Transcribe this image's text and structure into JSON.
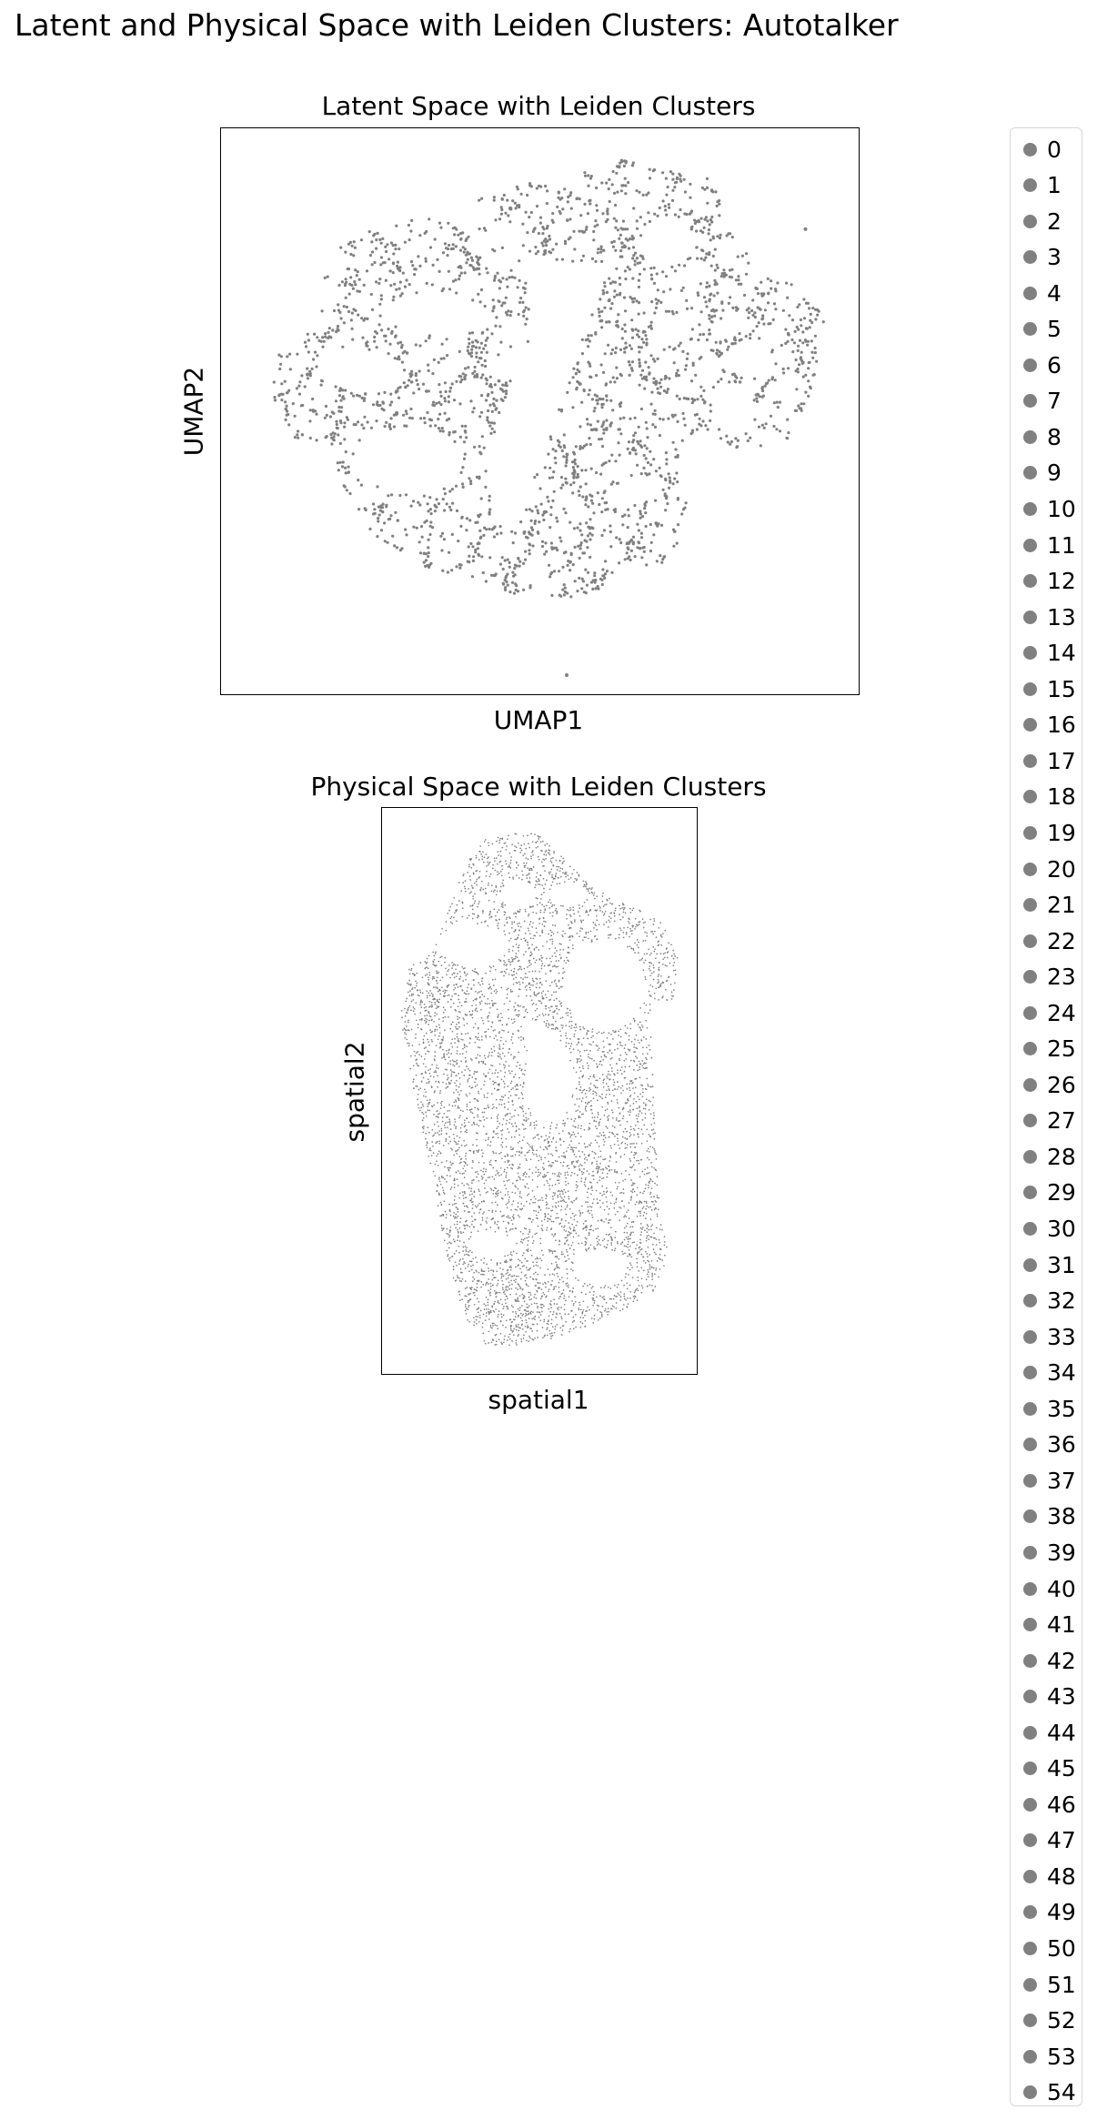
{
  "figure": {
    "title": "Latent and Physical Space with Leiden Clusters: Autotalker"
  },
  "chart_data": [
    {
      "type": "scatter",
      "title": "Latent Space with Leiden Clusters",
      "xlabel": "UMAP1",
      "ylabel": "UMAP2",
      "grid": false,
      "ticks": false,
      "point_color": "#808080",
      "outliers": [
        [
          -10.2,
          1.8
        ],
        [
          11.7,
          9.0
        ],
        [
          9.6,
          0.8
        ],
        [
          1.2,
          -13.1
        ]
      ],
      "description_points": "cell embedding points, all drawn in one gray color"
    },
    {
      "type": "scatter",
      "title": "Physical Space with Leiden Clusters",
      "xlabel": "spatial1",
      "ylabel": "spatial2",
      "grid": false,
      "ticks": false,
      "point_color": "#808080"
    }
  ],
  "legend": {
    "placement": "right",
    "marker_color": "#808080",
    "labels": [
      "0",
      "1",
      "2",
      "3",
      "4",
      "5",
      "6",
      "7",
      "8",
      "9",
      "10",
      "11",
      "12",
      "13",
      "14",
      "15",
      "16",
      "17",
      "18",
      "19",
      "20",
      "21",
      "22",
      "23",
      "24",
      "25",
      "26",
      "27",
      "28",
      "29",
      "30",
      "31",
      "32",
      "33",
      "34",
      "35",
      "36",
      "37",
      "38",
      "39",
      "40",
      "41",
      "42",
      "43",
      "44",
      "45",
      "46",
      "47",
      "48",
      "49",
      "50",
      "51",
      "52",
      "53",
      "54"
    ]
  }
}
